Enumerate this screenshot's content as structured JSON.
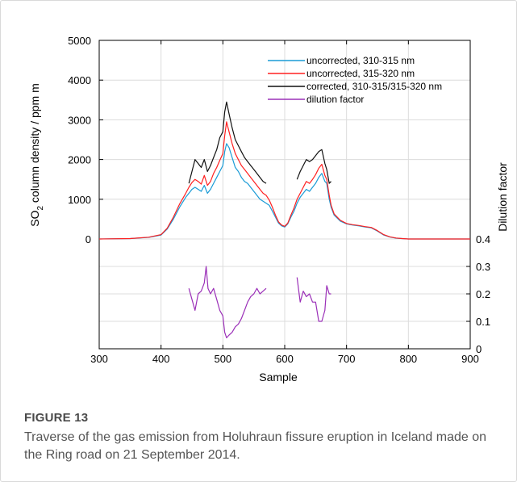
{
  "figure": {
    "label": "FIGURE 13",
    "caption": "Traverse of the gas emission from Holuhraun fissure eruption in Iceland made on the Ring road on 21 September 2014."
  },
  "chart_data": {
    "type": "line",
    "title": "",
    "xlabel": "Sample",
    "ylabel": "SO",
    "ylabel_sub": "2",
    "ylabel_rest": " column density / ppm m",
    "y2label": "Dilution factor",
    "xlim": [
      300,
      900
    ],
    "ylim": [
      0,
      5000
    ],
    "xticks": [
      300,
      400,
      500,
      600,
      700,
      800,
      900
    ],
    "yticks": [
      0,
      1000,
      2000,
      3000,
      4000,
      5000
    ],
    "y2lim": [
      0,
      0.4
    ],
    "y2ticks": [
      0,
      0.1,
      0.2,
      0.3,
      0.4
    ],
    "y2ticklabels": [
      "0",
      "0.1",
      "0.2",
      "0.3",
      "0.4"
    ],
    "grid": true,
    "legend_position": "top-right",
    "series": [
      {
        "name": "uncorrected, 310-315 nm",
        "color": "#1a9bd6",
        "axis": "left",
        "x": [
          300,
          350,
          380,
          400,
          410,
          420,
          430,
          440,
          445,
          450,
          455,
          460,
          465,
          470,
          475,
          480,
          485,
          490,
          495,
          500,
          503,
          506,
          510,
          515,
          520,
          525,
          530,
          535,
          540,
          545,
          550,
          555,
          560,
          565,
          570,
          575,
          580,
          585,
          590,
          595,
          600,
          605,
          610,
          615,
          620,
          625,
          630,
          635,
          640,
          645,
          650,
          655,
          660,
          665,
          668,
          672,
          675,
          680,
          690,
          700,
          710,
          720,
          730,
          740,
          750,
          760,
          770,
          780,
          790,
          800,
          850,
          900
        ],
        "y": [
          0,
          10,
          40,
          100,
          250,
          500,
          800,
          1050,
          1150,
          1250,
          1300,
          1250,
          1200,
          1350,
          1150,
          1250,
          1400,
          1550,
          1700,
          1850,
          2200,
          2400,
          2300,
          2050,
          1800,
          1700,
          1550,
          1450,
          1400,
          1300,
          1200,
          1100,
          1000,
          950,
          900,
          850,
          700,
          550,
          400,
          330,
          300,
          380,
          550,
          700,
          900,
          1050,
          1150,
          1250,
          1200,
          1300,
          1400,
          1550,
          1650,
          1450,
          1400,
          1000,
          800,
          600,
          450,
          380,
          350,
          330,
          300,
          280,
          200,
          100,
          50,
          20,
          10,
          0,
          0,
          0
        ]
      },
      {
        "name": "uncorrected, 315-320 nm",
        "color": "#ff2020",
        "axis": "left",
        "x": [
          300,
          350,
          380,
          400,
          410,
          420,
          430,
          440,
          445,
          450,
          455,
          460,
          465,
          470,
          475,
          480,
          485,
          490,
          495,
          500,
          503,
          506,
          510,
          515,
          520,
          525,
          530,
          535,
          540,
          545,
          550,
          555,
          560,
          565,
          570,
          575,
          580,
          585,
          590,
          595,
          600,
          605,
          610,
          615,
          620,
          625,
          630,
          635,
          640,
          645,
          650,
          655,
          660,
          665,
          668,
          672,
          675,
          680,
          690,
          700,
          710,
          720,
          730,
          740,
          750,
          760,
          770,
          780,
          790,
          800,
          850,
          900
        ],
        "y": [
          0,
          10,
          45,
          110,
          270,
          550,
          880,
          1150,
          1300,
          1420,
          1500,
          1450,
          1380,
          1600,
          1350,
          1450,
          1650,
          1800,
          1980,
          2150,
          2600,
          2950,
          2700,
          2400,
          2150,
          2000,
          1850,
          1750,
          1650,
          1550,
          1450,
          1350,
          1250,
          1150,
          1100,
          980,
          800,
          600,
          430,
          350,
          320,
          400,
          600,
          780,
          1000,
          1150,
          1300,
          1450,
          1400,
          1500,
          1620,
          1780,
          1880,
          1600,
          1500,
          1100,
          850,
          630,
          470,
          390,
          360,
          340,
          310,
          290,
          210,
          110,
          55,
          25,
          10,
          0,
          0,
          0
        ]
      },
      {
        "name": "corrected, 310-315/315-320 nm",
        "color": "#111111",
        "axis": "left",
        "x": [
          445,
          450,
          455,
          460,
          465,
          470,
          475,
          480,
          485,
          490,
          495,
          500,
          503,
          506,
          510,
          515,
          520,
          525,
          530,
          535,
          540,
          545,
          550,
          555,
          560,
          565,
          570,
          null,
          620,
          625,
          630,
          635,
          640,
          645,
          650,
          655,
          660,
          665,
          668,
          672,
          675
        ],
        "y": [
          1400,
          1700,
          2000,
          1900,
          1800,
          2000,
          1700,
          1850,
          2050,
          2250,
          2550,
          2700,
          3200,
          3450,
          3150,
          2800,
          2500,
          2350,
          2200,
          2050,
          1950,
          1850,
          1750,
          1650,
          1550,
          1450,
          1400,
          null,
          1500,
          1700,
          1850,
          2000,
          1950,
          2000,
          2100,
          2200,
          2250,
          1900,
          1750,
          1400,
          1450
        ]
      },
      {
        "name": "dilution factor",
        "color": "#9b30b8",
        "axis": "right",
        "x": [
          445,
          450,
          455,
          460,
          465,
          470,
          473,
          476,
          480,
          485,
          490,
          495,
          500,
          503,
          506,
          510,
          515,
          520,
          525,
          530,
          535,
          540,
          545,
          550,
          555,
          560,
          565,
          570,
          null,
          620,
          625,
          630,
          635,
          640,
          645,
          650,
          655,
          660,
          665,
          668,
          672,
          675
        ],
        "y": [
          0.22,
          0.18,
          0.14,
          0.2,
          0.21,
          0.24,
          0.3,
          0.22,
          0.2,
          0.22,
          0.18,
          0.14,
          0.12,
          0.06,
          0.04,
          0.05,
          0.06,
          0.08,
          0.09,
          0.11,
          0.14,
          0.17,
          0.19,
          0.2,
          0.22,
          0.2,
          0.21,
          0.22,
          null,
          0.26,
          0.17,
          0.21,
          0.19,
          0.2,
          0.17,
          0.17,
          0.1,
          0.1,
          0.14,
          0.23,
          0.2,
          0.2
        ]
      }
    ]
  }
}
